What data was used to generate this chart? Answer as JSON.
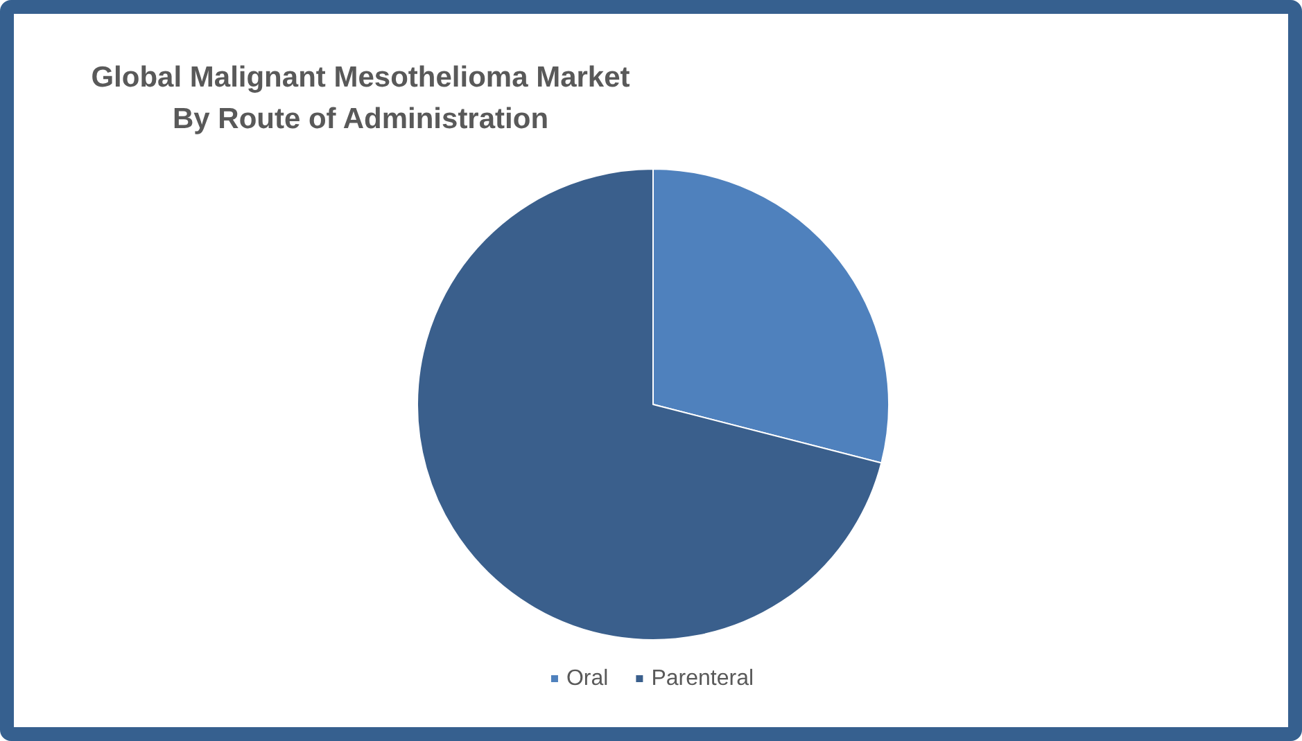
{
  "chart_data": {
    "type": "pie",
    "title": "Global Malignant Mesothelioma Market\nBy Route of Administration",
    "categories": [
      "Oral",
      "Parenteral"
    ],
    "values": [
      29,
      71
    ],
    "colors": [
      "#4f81bd",
      "#3a5f8c"
    ],
    "legend": "bottom"
  }
}
